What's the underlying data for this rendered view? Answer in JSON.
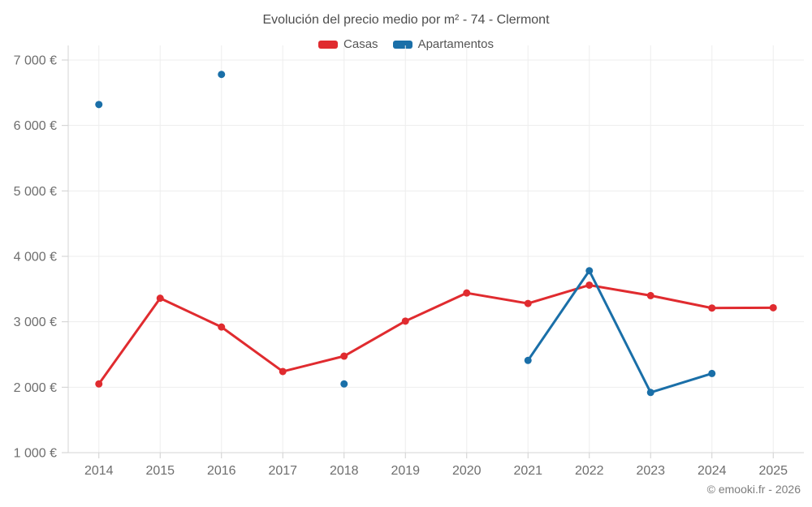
{
  "title": "Evolución del precio medio por m² - 74 - Clermont",
  "footer": "© emooki.fr - 2026",
  "chart_data": {
    "type": "line",
    "title": "Evolución del precio medio por m² - 74 - Clermont",
    "categories": [
      "2014",
      "2015",
      "2016",
      "2017",
      "2018",
      "2019",
      "2020",
      "2021",
      "2022",
      "2023",
      "2024",
      "2025"
    ],
    "series": [
      {
        "name": "Casas",
        "color": "#e02b2f",
        "values": [
          2050,
          3360,
          2920,
          2240,
          2475,
          3010,
          3440,
          3280,
          3560,
          3400,
          3210,
          3215
        ]
      },
      {
        "name": "Apartamentos",
        "color": "#1a6fa8",
        "values": [
          6320,
          null,
          6780,
          null,
          2050,
          null,
          null,
          2410,
          3780,
          1920,
          2210,
          null
        ]
      }
    ],
    "ylim": [
      1000,
      7000
    ],
    "y_ticks": [
      {
        "value": 1000,
        "label": "1 000 €"
      },
      {
        "value": 2000,
        "label": "2 000 €"
      },
      {
        "value": 3000,
        "label": "3 000 €"
      },
      {
        "value": 4000,
        "label": "4 000 €"
      },
      {
        "value": 5000,
        "label": "5 000 €"
      },
      {
        "value": 6000,
        "label": "6 000 €"
      },
      {
        "value": 7000,
        "label": "7 000 €"
      }
    ],
    "legend_position": "top",
    "grid": true,
    "style": {
      "grid_color": "#ededed",
      "axis_color": "#d6d6d6",
      "tick_color": "#cfcfcf",
      "axis_text_color": "#6e6e6e",
      "point_radius": 4.5,
      "line_width": 3
    }
  }
}
